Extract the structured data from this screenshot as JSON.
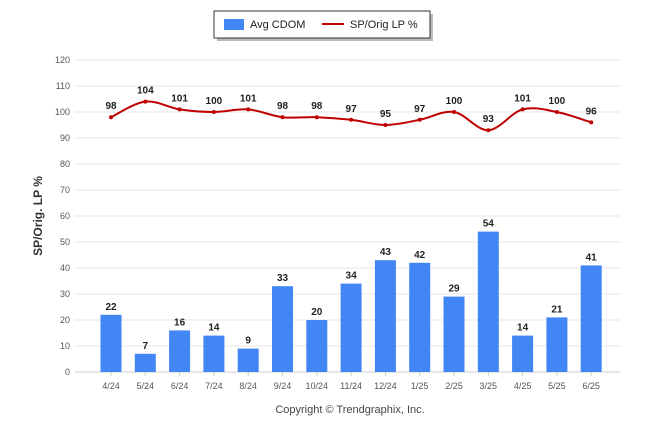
{
  "chart_data": {
    "type": "bar",
    "categories": [
      "4/24",
      "5/24",
      "6/24",
      "7/24",
      "8/24",
      "9/24",
      "10/24",
      "11/24",
      "12/24",
      "1/25",
      "2/25",
      "3/25",
      "4/25",
      "5/25",
      "6/25"
    ],
    "series": [
      {
        "name": "Avg CDOM",
        "type": "bar",
        "color": "#4285f4",
        "values": [
          22,
          7,
          16,
          14,
          9,
          33,
          20,
          34,
          43,
          42,
          29,
          54,
          14,
          21,
          41
        ]
      },
      {
        "name": "SP/Orig LP %",
        "type": "line",
        "color": "#c00000",
        "values": [
          98,
          104,
          101,
          100,
          101,
          98,
          98,
          97,
          95,
          97,
          100,
          93,
          101,
          100,
          96
        ]
      }
    ],
    "title": "",
    "xlabel": "",
    "ylabel": "SP/Orig. LP %",
    "ylim": [
      0,
      120
    ],
    "yticks": [
      0,
      10,
      20,
      30,
      40,
      50,
      60,
      70,
      80,
      90,
      100,
      110,
      120
    ],
    "grid": true,
    "legend": "top-center"
  },
  "footer": {
    "copyright": "Copyright © Trendgraphix, Inc."
  }
}
